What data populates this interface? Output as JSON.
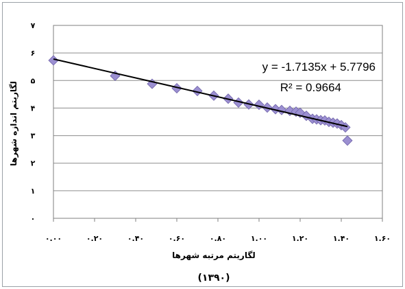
{
  "chart_data": {
    "type": "scatter",
    "xlabel": "لگاریتم مرتبه شهرها",
    "ylabel": "لگاریتم اندازه شهرها",
    "subtitle": "(۱۳۹۰)",
    "xlim": [
      0,
      1.6
    ],
    "ylim": [
      0,
      7
    ],
    "x_ticks": [
      0,
      0.2,
      0.4,
      0.6,
      0.8,
      1.0,
      1.2,
      1.4,
      1.6
    ],
    "y_ticks": [
      0,
      1,
      2,
      3,
      4,
      5,
      6,
      7
    ],
    "x_tick_labels": [
      "۰.۰۰",
      "۰.۲۰",
      "۰.۴۰",
      "۰.۶۰",
      "۰.۸۰",
      "۱.۰۰",
      "۱.۲۰",
      "۱.۴۰",
      "۱.۶۰"
    ],
    "y_tick_labels": [
      "۰",
      "۱",
      "۲",
      "۳",
      "۴",
      "۵",
      "۶",
      "۷"
    ],
    "grid": true,
    "legend": "none",
    "marker_color": "#9b8fd1",
    "marker_stroke": "#6e62a8",
    "trendline_color": "#000000",
    "points": [
      {
        "x": 0.0,
        "y": 5.73
      },
      {
        "x": 0.3,
        "y": 5.17
      },
      {
        "x": 0.48,
        "y": 4.88
      },
      {
        "x": 0.6,
        "y": 4.72
      },
      {
        "x": 0.7,
        "y": 4.62
      },
      {
        "x": 0.78,
        "y": 4.45
      },
      {
        "x": 0.85,
        "y": 4.34
      },
      {
        "x": 0.9,
        "y": 4.2
      },
      {
        "x": 0.95,
        "y": 4.13
      },
      {
        "x": 1.0,
        "y": 4.12
      },
      {
        "x": 1.04,
        "y": 4.02
      },
      {
        "x": 1.08,
        "y": 3.96
      },
      {
        "x": 1.11,
        "y": 3.93
      },
      {
        "x": 1.15,
        "y": 3.9
      },
      {
        "x": 1.18,
        "y": 3.87
      },
      {
        "x": 1.2,
        "y": 3.83
      },
      {
        "x": 1.23,
        "y": 3.72
      },
      {
        "x": 1.26,
        "y": 3.61
      },
      {
        "x": 1.28,
        "y": 3.59
      },
      {
        "x": 1.3,
        "y": 3.56
      },
      {
        "x": 1.32,
        "y": 3.55
      },
      {
        "x": 1.34,
        "y": 3.5
      },
      {
        "x": 1.36,
        "y": 3.47
      },
      {
        "x": 1.38,
        "y": 3.44
      },
      {
        "x": 1.4,
        "y": 3.38
      },
      {
        "x": 1.42,
        "y": 3.3
      },
      {
        "x": 1.43,
        "y": 2.82
      }
    ],
    "trendline": {
      "slope": -1.7135,
      "intercept": 5.7796,
      "x_range": [
        0,
        1.43
      ],
      "equation_label": "y = -1.7135x + 5.7796",
      "r2_label": "R² = 0.9664"
    }
  }
}
